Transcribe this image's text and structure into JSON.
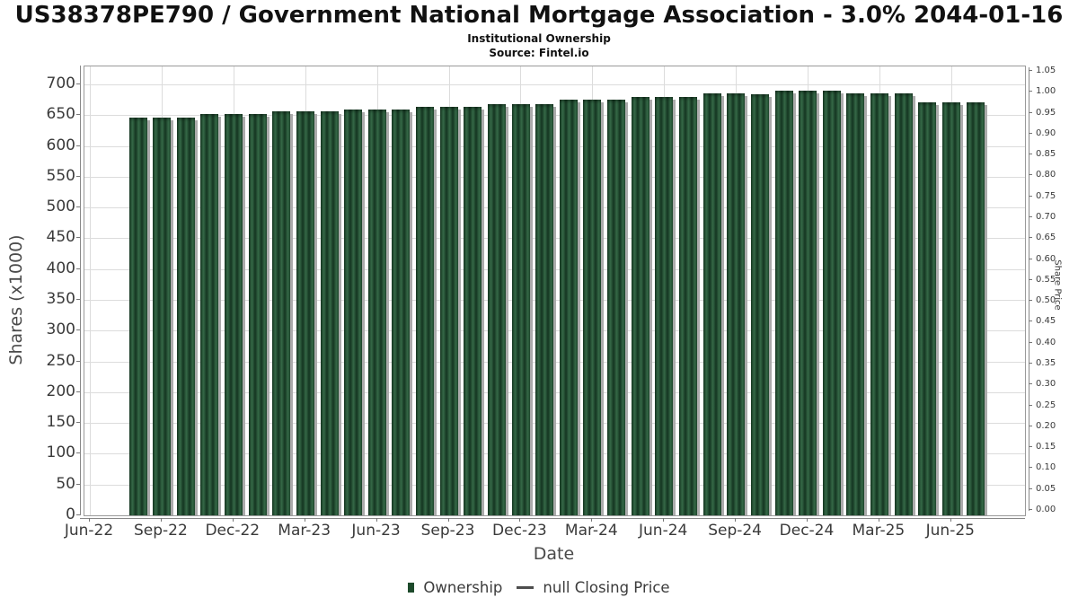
{
  "title": "US38378PE790 / Government National Mortgage Association - 3.0% 2044-01-16",
  "subtitle": "Institutional Ownership",
  "source": "Source: Fintel.io",
  "legend": {
    "bar_label": "Ownership",
    "line_label": "null Closing Price"
  },
  "colors": {
    "bar_dark": "#143520",
    "bar_light": "#356947",
    "bar_legend": "#1d4a2b",
    "bar_shadow": "#ababab",
    "grid": "#dcdcdc",
    "tick_text": "#3a3a3a"
  },
  "chart_data": {
    "type": "bar",
    "title": "US38378PE790 / Government National Mortgage Association - 3.0% 2044-01-16",
    "subtitle": "Institutional Ownership",
    "source": "Source: Fintel.io",
    "xlabel": "Date",
    "ylabel_left": "Shares (x1000)",
    "ylabel_right": "Share Price",
    "grid": true,
    "legend_position": "bottom-center",
    "ylim_left": [
      0,
      700
    ],
    "ylim_right": [
      0.0,
      1.05
    ],
    "x_tick_labels": [
      "Jun-22",
      "Sep-22",
      "Dec-22",
      "Mar-23",
      "Jun-23",
      "Sep-23",
      "Dec-23",
      "Mar-24",
      "Jun-24",
      "Sep-24",
      "Dec-24",
      "Mar-25",
      "Jun-25"
    ],
    "y_left_tick_labels": [
      "0",
      "50",
      "100",
      "150",
      "200",
      "250",
      "300",
      "350",
      "400",
      "450",
      "500",
      "550",
      "600",
      "650",
      "700"
    ],
    "y_right_tick_labels": [
      "1.05",
      "1.00",
      "0.95",
      "0.90",
      "0.85",
      "0.80",
      "0.75",
      "0.70",
      "0.65",
      "0.60",
      "0.55",
      "0.50",
      "0.45",
      "0.40",
      "0.35",
      "0.30",
      "0.25",
      "0.20",
      "0.15",
      "0.10",
      "0.05",
      "0.00"
    ],
    "categories": [
      "Aug-22",
      "Sep-22",
      "Oct-22",
      "Nov-22",
      "Dec-22",
      "Jan-23",
      "Feb-23",
      "Mar-23",
      "Apr-23",
      "May-23",
      "Jun-23",
      "Jul-23",
      "Aug-23",
      "Sep-23",
      "Oct-23",
      "Nov-23",
      "Dec-23",
      "Jan-24",
      "Feb-24",
      "Mar-24",
      "Apr-24",
      "May-24",
      "Jun-24",
      "Jul-24",
      "Aug-24",
      "Sep-24",
      "Oct-24",
      "Nov-24",
      "Dec-24",
      "Jan-25",
      "Feb-25",
      "Mar-25",
      "Apr-25",
      "May-25",
      "Jun-25",
      "Jul-25"
    ],
    "series": [
      {
        "name": "Ownership",
        "type": "bar",
        "axis": "left",
        "units": "shares x1000",
        "values": [
          646,
          646,
          646,
          652,
          652,
          652,
          656,
          656,
          656,
          659,
          659,
          659,
          664,
          664,
          664,
          668,
          668,
          668,
          675,
          675,
          675,
          680,
          680,
          680,
          685,
          685,
          684,
          690,
          690,
          690,
          685,
          685,
          685,
          671,
          671,
          671
        ]
      },
      {
        "name": "null Closing Price",
        "type": "line",
        "axis": "right",
        "values": []
      }
    ]
  }
}
